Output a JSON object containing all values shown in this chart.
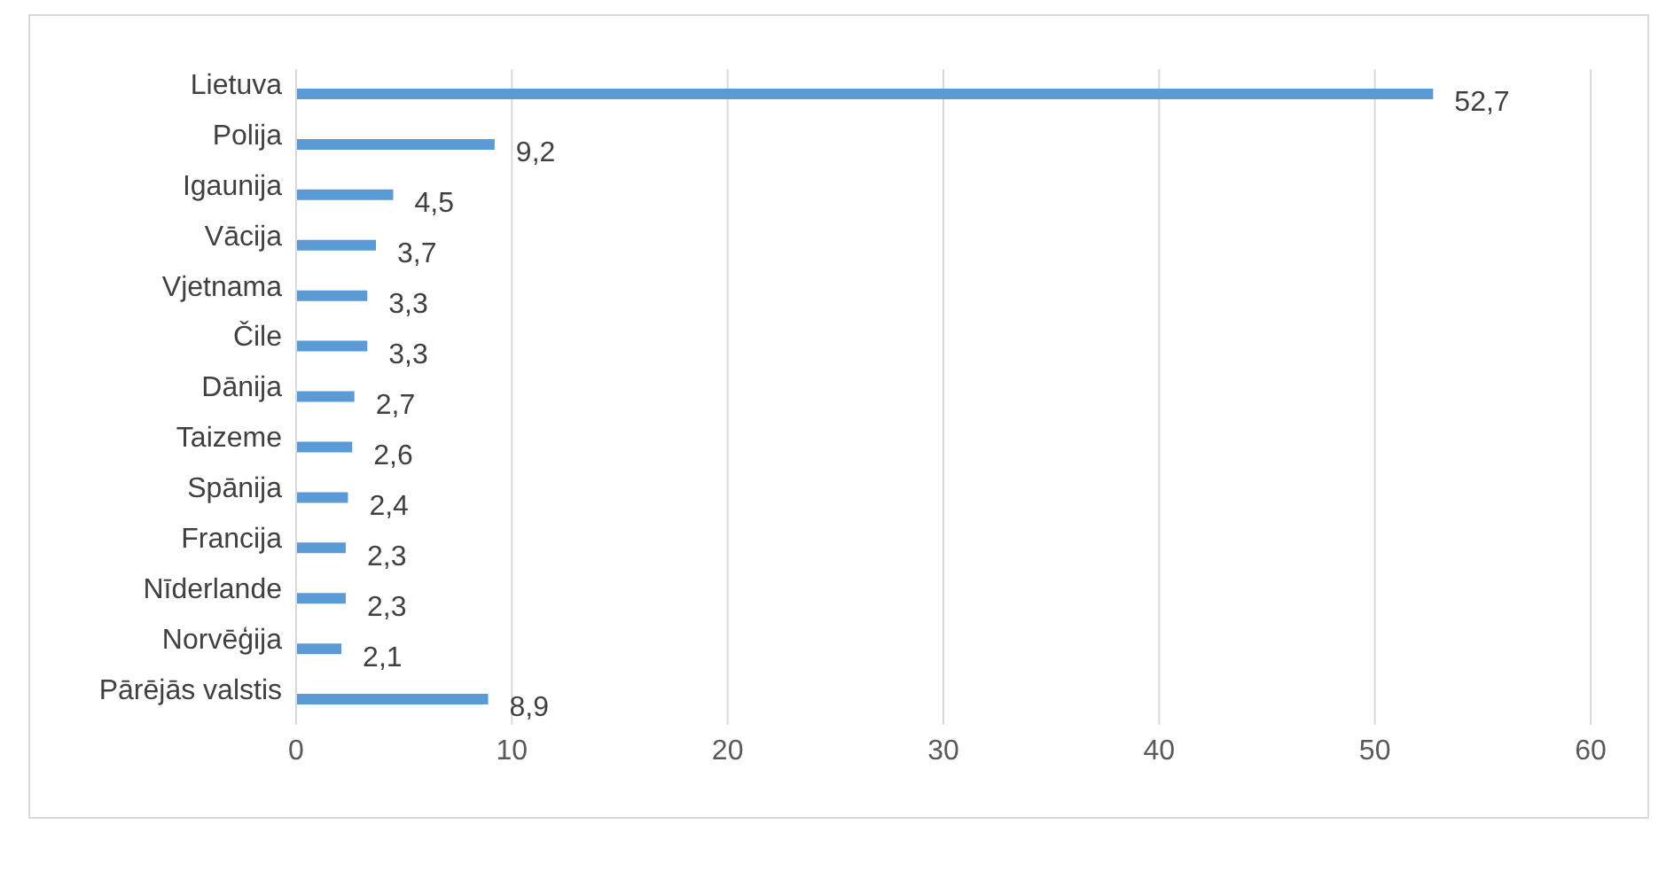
{
  "chart_data": {
    "type": "bar",
    "orientation": "horizontal",
    "categories": [
      "Lietuva",
      "Polija",
      "Igaunija",
      "Vācija",
      "Vjetnama",
      "Čile",
      "Dānija",
      "Taizeme",
      "Spānija",
      "Francija",
      "Nīderlande",
      "Norvēģija",
      "Pārējās valstis"
    ],
    "values": [
      52.7,
      9.2,
      4.5,
      3.7,
      3.3,
      3.3,
      2.7,
      2.6,
      2.4,
      2.3,
      2.3,
      2.1,
      8.9
    ],
    "value_labels": [
      "52,7",
      "9,2",
      "4,5",
      "3,7",
      "3,3",
      "3,3",
      "2,7",
      "2,6",
      "2,4",
      "2,3",
      "2,3",
      "2,1",
      "8,9"
    ],
    "color": "#5b9bd5",
    "xlim": [
      0,
      60
    ],
    "xticks": [
      0,
      10,
      20,
      30,
      40,
      50,
      60
    ],
    "grid": "x",
    "legend": false
  }
}
